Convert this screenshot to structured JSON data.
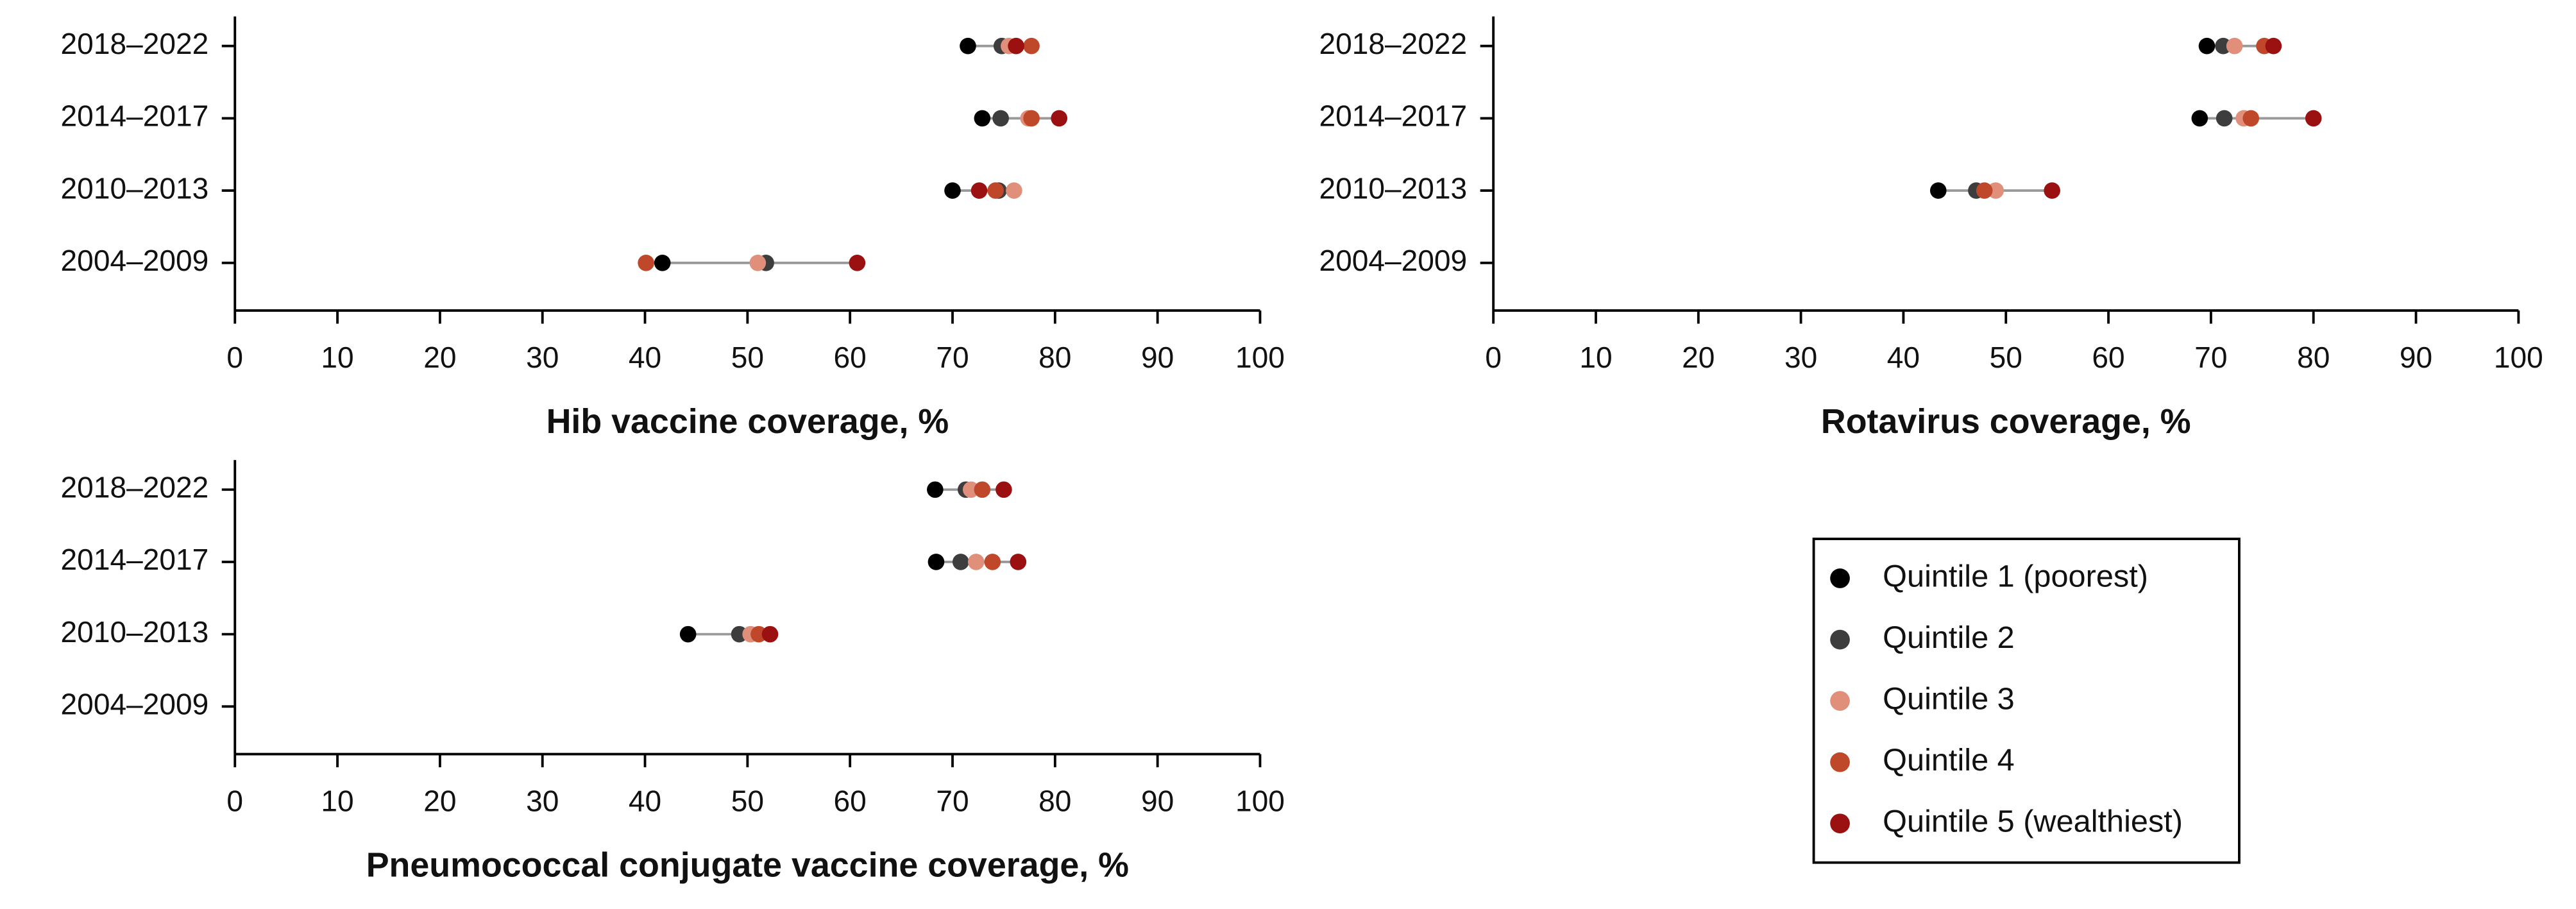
{
  "chart_data": [
    {
      "type": "dot",
      "xlabel": "Hib vaccine coverage, %",
      "categories": [
        "2018–2022",
        "2014–2017",
        "2010–2013",
        "2004–2009"
      ],
      "xlim": [
        0,
        100
      ],
      "xticks": [
        0,
        10,
        20,
        30,
        40,
        50,
        60,
        70,
        80,
        90,
        100
      ],
      "series": [
        {
          "name": "Quintile 1 (poorest)",
          "color": "#000000",
          "values": [
            71.5,
            72.9,
            70.0,
            41.7
          ]
        },
        {
          "name": "Quintile 2",
          "color": "#3d3d3d",
          "values": [
            74.8,
            74.7,
            74.5,
            51.8
          ]
        },
        {
          "name": "Quintile 3",
          "color": "#e0907a",
          "values": [
            75.5,
            77.4,
            76.0,
            51.0
          ]
        },
        {
          "name": "Quintile 4",
          "color": "#c0482a",
          "values": [
            77.7,
            77.7,
            74.2,
            40.1
          ]
        },
        {
          "name": "Quintile 5 (wealthiest)",
          "color": "#9b1010",
          "values": [
            76.2,
            80.4,
            72.6,
            60.7
          ]
        }
      ]
    },
    {
      "type": "dot",
      "xlabel": "Rotavirus coverage, %",
      "categories": [
        "2018–2022",
        "2014–2017",
        "2010–2013",
        "2004–2009"
      ],
      "xlim": [
        0,
        100
      ],
      "xticks": [
        0,
        10,
        20,
        30,
        40,
        50,
        60,
        70,
        80,
        90,
        100
      ],
      "series": [
        {
          "color": "#000000",
          "values": [
            69.6,
            68.9,
            43.4,
            null
          ]
        },
        {
          "color": "#3d3d3d",
          "values": [
            71.2,
            71.3,
            47.1,
            null
          ]
        },
        {
          "color": "#e0907a",
          "values": [
            72.3,
            73.2,
            49.0,
            null
          ]
        },
        {
          "color": "#c0482a",
          "values": [
            75.2,
            73.9,
            47.9,
            null
          ]
        },
        {
          "color": "#9b1010",
          "values": [
            76.1,
            80.0,
            54.5,
            null
          ]
        }
      ]
    },
    {
      "type": "dot",
      "xlabel": "Pneumococcal conjugate vaccine coverage, %",
      "categories": [
        "2018–2022",
        "2014–2017",
        "2010–2013",
        "2004–2009"
      ],
      "xlim": [
        0,
        100
      ],
      "xticks": [
        0,
        10,
        20,
        30,
        40,
        50,
        60,
        70,
        80,
        90,
        100
      ],
      "series": [
        {
          "color": "#000000",
          "values": [
            68.3,
            68.4,
            44.2,
            null
          ]
        },
        {
          "color": "#3d3d3d",
          "values": [
            71.3,
            70.8,
            49.2,
            null
          ]
        },
        {
          "color": "#e0907a",
          "values": [
            71.8,
            72.3,
            50.3,
            null
          ]
        },
        {
          "color": "#c0482a",
          "values": [
            72.9,
            73.9,
            51.1,
            null
          ]
        },
        {
          "color": "#9b1010",
          "values": [
            75.0,
            76.4,
            52.2,
            null
          ]
        }
      ]
    }
  ]
}
